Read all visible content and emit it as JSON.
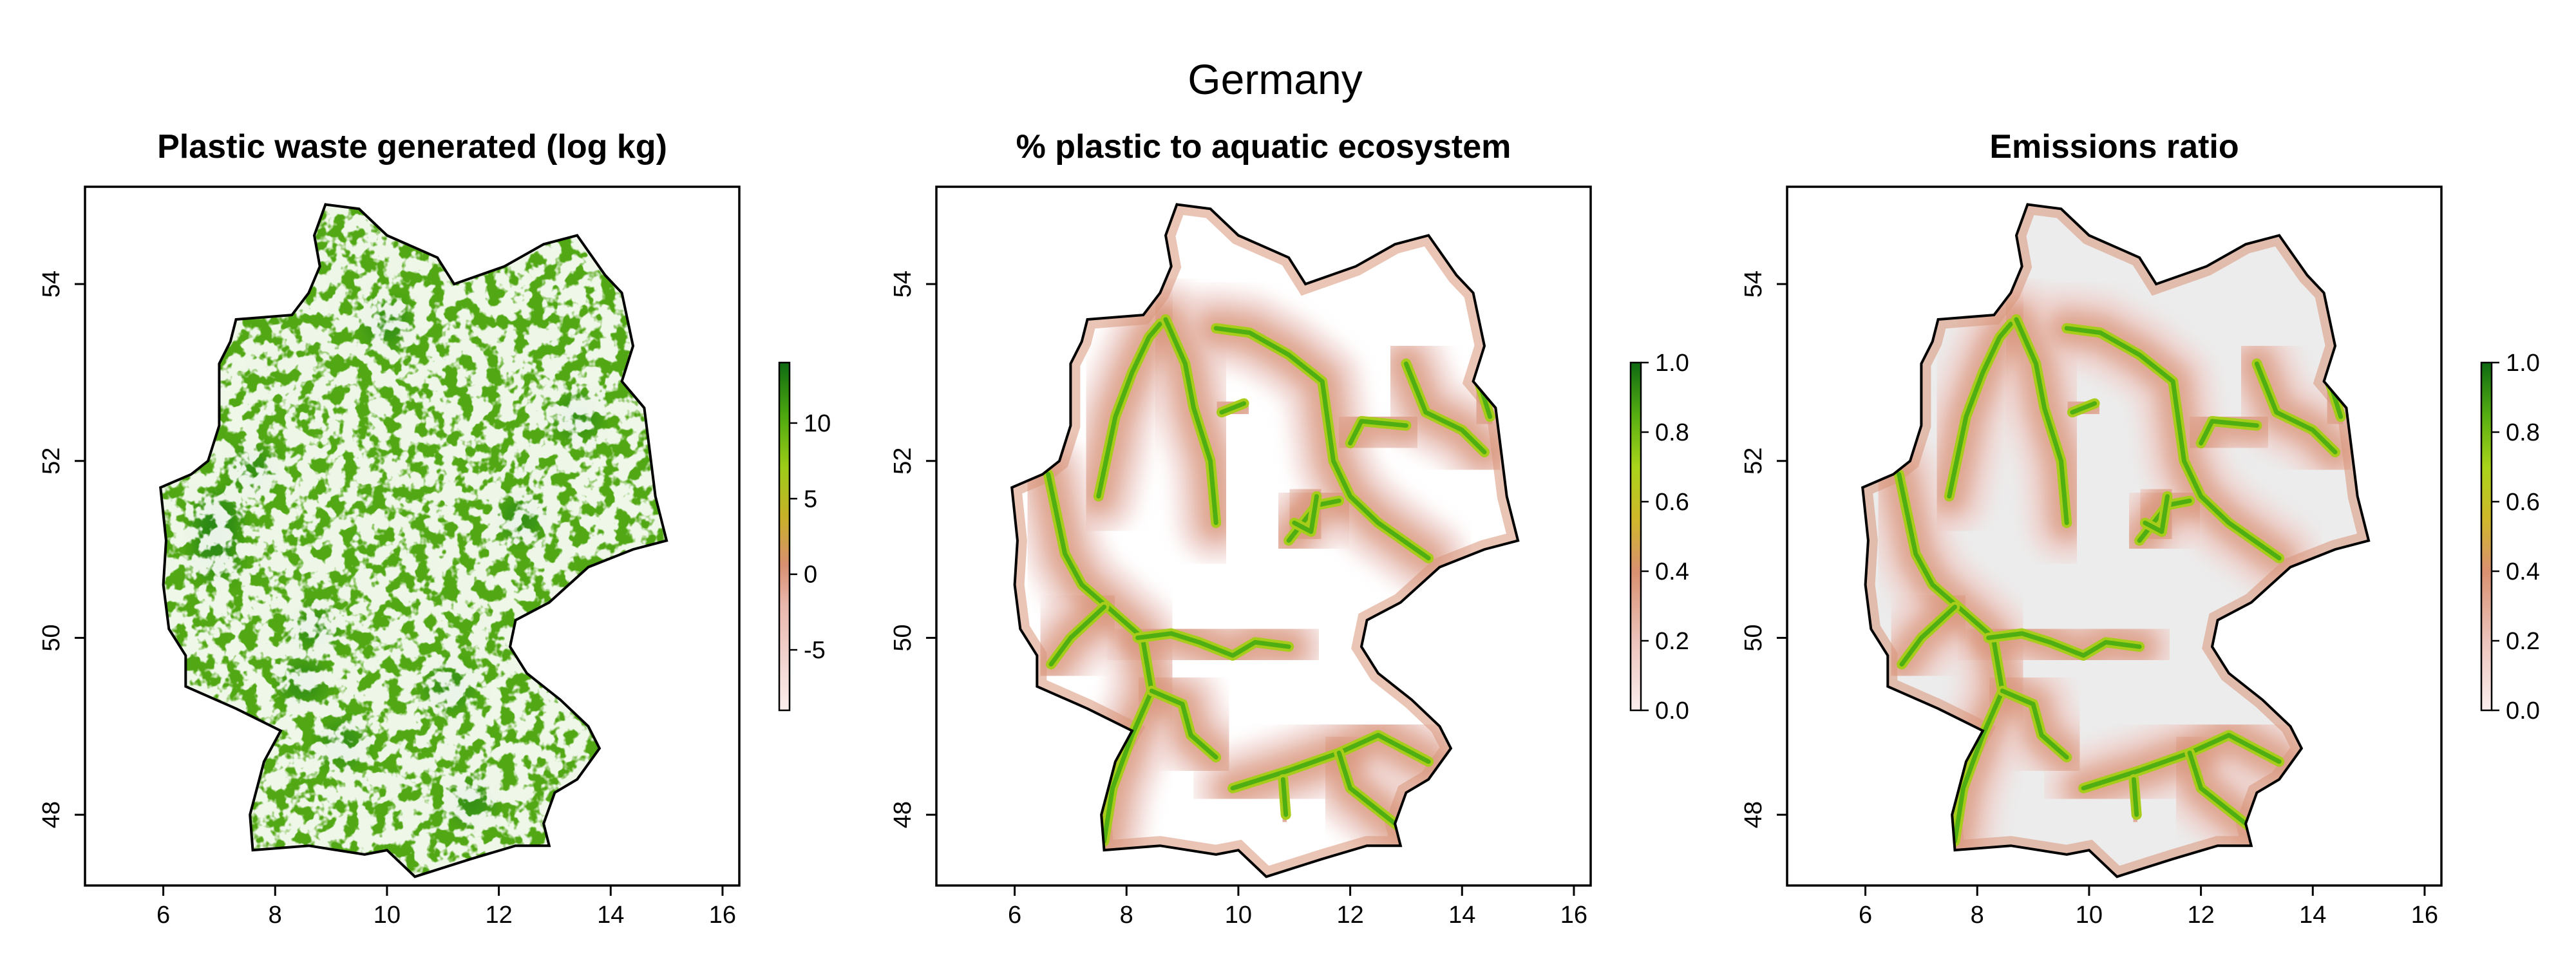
{
  "figure": {
    "title": "Germany"
  },
  "colors": {
    "green_dark": "#1a7a0f",
    "green_mid": "#4fae12",
    "yellow_green": "#a8cc1a",
    "salmon": "#d9957a",
    "pink_light": "#efd3cf",
    "gray_bg": "#ececec",
    "white": "#ffffff",
    "border": "#000000"
  },
  "panels": [
    {
      "title": "Plastic waste generated (log kg)",
      "fill": "green",
      "x_ticks": [
        "6",
        "8",
        "10",
        "12",
        "14",
        "16"
      ],
      "y_ticks": [
        "48",
        "50",
        "52",
        "54"
      ],
      "legend_ticks": [
        "10",
        "5",
        "0",
        "-5"
      ],
      "legend_range": [
        -9,
        14
      ]
    },
    {
      "title": "% plastic to aquatic ecosystem",
      "fill": "rivers",
      "x_ticks": [
        "6",
        "8",
        "10",
        "12",
        "14",
        "16"
      ],
      "y_ticks": [
        "48",
        "50",
        "52",
        "54"
      ],
      "legend_ticks": [
        "1.0",
        "0.8",
        "0.6",
        "0.4",
        "0.2",
        "0.0"
      ],
      "legend_range": [
        0,
        1
      ]
    },
    {
      "title": "Emissions ratio",
      "fill": "rivers_gray",
      "x_ticks": [
        "6",
        "8",
        "10",
        "12",
        "14",
        "16"
      ],
      "y_ticks": [
        "48",
        "50",
        "52",
        "54"
      ],
      "legend_ticks": [
        "1.0",
        "0.8",
        "0.6",
        "0.4",
        "0.2",
        "0.0"
      ],
      "legend_range": [
        0,
        1
      ]
    }
  ],
  "map_extent": {
    "lon": [
      4.6,
      16.3
    ],
    "lat": [
      47.2,
      55.1
    ]
  },
  "germany_outline": [
    [
      8.9,
      54.9
    ],
    [
      9.5,
      54.85
    ],
    [
      10.0,
      54.55
    ],
    [
      10.9,
      54.3
    ],
    [
      11.2,
      54.0
    ],
    [
      12.1,
      54.2
    ],
    [
      12.8,
      54.45
    ],
    [
      13.4,
      54.55
    ],
    [
      13.9,
      54.1
    ],
    [
      14.2,
      53.9
    ],
    [
      14.4,
      53.3
    ],
    [
      14.2,
      52.9
    ],
    [
      14.6,
      52.6
    ],
    [
      14.7,
      52.1
    ],
    [
      14.8,
      51.6
    ],
    [
      15.0,
      51.1
    ],
    [
      14.4,
      51.0
    ],
    [
      13.6,
      50.8
    ],
    [
      12.9,
      50.4
    ],
    [
      12.3,
      50.2
    ],
    [
      12.2,
      49.9
    ],
    [
      12.5,
      49.6
    ],
    [
      13.1,
      49.3
    ],
    [
      13.6,
      49.0
    ],
    [
      13.8,
      48.75
    ],
    [
      13.4,
      48.4
    ],
    [
      13.0,
      48.25
    ],
    [
      12.8,
      47.9
    ],
    [
      12.9,
      47.65
    ],
    [
      12.3,
      47.65
    ],
    [
      11.5,
      47.5
    ],
    [
      10.5,
      47.3
    ],
    [
      10.0,
      47.6
    ],
    [
      9.6,
      47.55
    ],
    [
      8.6,
      47.65
    ],
    [
      7.6,
      47.6
    ],
    [
      7.55,
      48.0
    ],
    [
      7.8,
      48.6
    ],
    [
      8.1,
      48.95
    ],
    [
      7.3,
      49.2
    ],
    [
      6.4,
      49.45
    ],
    [
      6.4,
      49.8
    ],
    [
      6.1,
      50.1
    ],
    [
      6.0,
      50.6
    ],
    [
      6.05,
      51.1
    ],
    [
      5.95,
      51.7
    ],
    [
      6.5,
      51.85
    ],
    [
      6.8,
      52.0
    ],
    [
      7.0,
      52.4
    ],
    [
      7.0,
      53.1
    ],
    [
      7.2,
      53.35
    ],
    [
      7.3,
      53.6
    ],
    [
      8.3,
      53.65
    ],
    [
      8.6,
      53.9
    ],
    [
      8.8,
      54.2
    ],
    [
      8.7,
      54.55
    ],
    [
      8.9,
      54.9
    ]
  ],
  "rivers": [
    [
      [
        7.6,
        47.7
      ],
      [
        7.75,
        48.3
      ],
      [
        8.1,
        48.9
      ],
      [
        8.45,
        49.4
      ],
      [
        8.3,
        49.95
      ],
      [
        8.2,
        50.05
      ],
      [
        7.75,
        50.3
      ],
      [
        7.2,
        50.6
      ],
      [
        6.9,
        50.95
      ],
      [
        6.75,
        51.4
      ],
      [
        6.6,
        51.85
      ]
    ],
    [
      [
        8.2,
        50.0
      ],
      [
        8.8,
        50.05
      ],
      [
        9.3,
        49.95
      ],
      [
        9.9,
        49.8
      ],
      [
        10.3,
        49.95
      ],
      [
        10.9,
        49.9
      ]
    ],
    [
      [
        8.45,
        49.4
      ],
      [
        9.0,
        49.25
      ],
      [
        9.15,
        48.9
      ],
      [
        9.6,
        48.65
      ]
    ],
    [
      [
        6.65,
        49.7
      ],
      [
        7.0,
        50.0
      ],
      [
        7.6,
        50.35
      ]
    ],
    [
      [
        9.9,
        48.3
      ],
      [
        10.9,
        48.5
      ],
      [
        11.8,
        48.7
      ],
      [
        12.5,
        48.9
      ],
      [
        13.4,
        48.6
      ]
    ],
    [
      [
        11.8,
        48.7
      ],
      [
        12.0,
        48.3
      ],
      [
        12.6,
        48.0
      ],
      [
        13.0,
        47.8
      ]
    ],
    [
      [
        10.8,
        48.4
      ],
      [
        10.85,
        48.0
      ]
    ],
    [
      [
        7.5,
        51.6
      ],
      [
        7.8,
        52.5
      ],
      [
        8.1,
        53.0
      ],
      [
        8.4,
        53.4
      ],
      [
        8.6,
        53.55
      ]
    ],
    [
      [
        9.6,
        51.3
      ],
      [
        9.5,
        52.0
      ],
      [
        9.2,
        52.6
      ],
      [
        9.05,
        53.1
      ],
      [
        8.7,
        53.6
      ]
    ],
    [
      [
        9.7,
        52.55
      ],
      [
        10.1,
        52.65
      ]
    ],
    [
      [
        13.4,
        50.9
      ],
      [
        12.5,
        51.3
      ],
      [
        12.0,
        51.6
      ],
      [
        11.7,
        52.0
      ],
      [
        11.5,
        52.9
      ],
      [
        10.9,
        53.2
      ],
      [
        10.2,
        53.45
      ],
      [
        9.6,
        53.5
      ]
    ],
    [
      [
        10.9,
        51.1
      ],
      [
        11.4,
        51.5
      ],
      [
        11.8,
        51.55
      ]
    ],
    [
      [
        13.0,
        53.1
      ],
      [
        13.35,
        52.55
      ],
      [
        14.0,
        52.35
      ],
      [
        14.4,
        52.1
      ]
    ],
    [
      [
        14.3,
        52.9
      ],
      [
        14.5,
        52.5
      ]
    ],
    [
      [
        11.0,
        51.3
      ],
      [
        11.3,
        51.2
      ],
      [
        11.4,
        51.6
      ]
    ],
    [
      [
        12.0,
        52.2
      ],
      [
        12.2,
        52.45
      ],
      [
        13.0,
        52.4
      ]
    ]
  ]
}
